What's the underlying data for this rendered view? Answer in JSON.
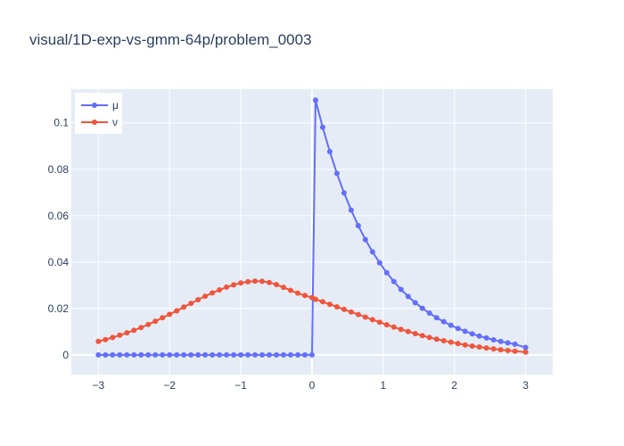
{
  "chart_data": {
    "type": "line",
    "title": "visual/1D-exp-vs-gmm-64p/problem_0003",
    "xlabel": "",
    "ylabel": "",
    "xlim": [
      -3.38,
      3.38
    ],
    "ylim": [
      -0.0085,
      0.1145
    ],
    "x_ticks": [
      -3,
      -2,
      -1,
      0,
      1,
      2,
      3
    ],
    "x_tick_labels": [
      "−3",
      "−2",
      "−1",
      "0",
      "1",
      "2",
      "3"
    ],
    "y_ticks": [
      0,
      0.02,
      0.04,
      0.06,
      0.08,
      0.1
    ],
    "y_tick_labels": [
      "0",
      "0.02",
      "0.04",
      "0.06",
      "0.08",
      "0.1"
    ],
    "grid": true,
    "legend_position": "top-left",
    "n_points": 61,
    "x": [
      -3.0,
      -2.9,
      -2.8,
      -2.7,
      -2.6,
      -2.5,
      -2.4,
      -2.3,
      -2.2,
      -2.1,
      -2.0,
      -1.9,
      -1.8,
      -1.7,
      -1.6,
      -1.5,
      -1.4,
      -1.3,
      -1.2,
      -1.1,
      -1.0,
      -0.9,
      -0.8,
      -0.7,
      -0.6,
      -0.5,
      -0.4,
      -0.3,
      -0.2,
      -0.1,
      0.0,
      0.05,
      0.15,
      0.25,
      0.35,
      0.45,
      0.55,
      0.65,
      0.75,
      0.85,
      0.95,
      1.05,
      1.15,
      1.25,
      1.35,
      1.45,
      1.55,
      1.65,
      1.75,
      1.85,
      1.95,
      2.05,
      2.15,
      2.25,
      2.35,
      2.45,
      2.55,
      2.65,
      2.75,
      2.85,
      3.0
    ],
    "series": [
      {
        "name": "μ",
        "color": "#636efa",
        "values": [
          0,
          0,
          0,
          0,
          0,
          0,
          0,
          0,
          0,
          0,
          0,
          0,
          0,
          0,
          0,
          0,
          0,
          0,
          0,
          0,
          0,
          0,
          0,
          0,
          0,
          0,
          0,
          0,
          0,
          0,
          0,
          0.1098,
          0.0981,
          0.0876,
          0.0782,
          0.0698,
          0.0624,
          0.0557,
          0.0497,
          0.0444,
          0.0397,
          0.0354,
          0.0316,
          0.0282,
          0.0252,
          0.0225,
          0.0201,
          0.018,
          0.016,
          0.0143,
          0.0128,
          0.0114,
          0.0102,
          0.0091,
          0.0081,
          0.0073,
          0.0065,
          0.0058,
          0.0052,
          0.0046,
          0.0032
        ]
      },
      {
        "name": "ν",
        "color": "#ef553b",
        "values": [
          0.0058,
          0.0066,
          0.0075,
          0.0085,
          0.0095,
          0.0106,
          0.0118,
          0.0131,
          0.0145,
          0.016,
          0.0175,
          0.019,
          0.0206,
          0.0222,
          0.0238,
          0.0253,
          0.0267,
          0.028,
          0.0292,
          0.0302,
          0.031,
          0.0315,
          0.0318,
          0.0317,
          0.0312,
          0.0303,
          0.0291,
          0.0278,
          0.0266,
          0.0256,
          0.0247,
          0.024,
          0.0229,
          0.0218,
          0.0207,
          0.0196,
          0.0185,
          0.0174,
          0.0163,
          0.0152,
          0.0141,
          0.013,
          0.012,
          0.011,
          0.0101,
          0.0092,
          0.0083,
          0.0075,
          0.0068,
          0.0061,
          0.0055,
          0.0049,
          0.0043,
          0.0038,
          0.0034,
          0.003,
          0.0026,
          0.0022,
          0.0019,
          0.0016,
          0.0012
        ]
      }
    ]
  }
}
